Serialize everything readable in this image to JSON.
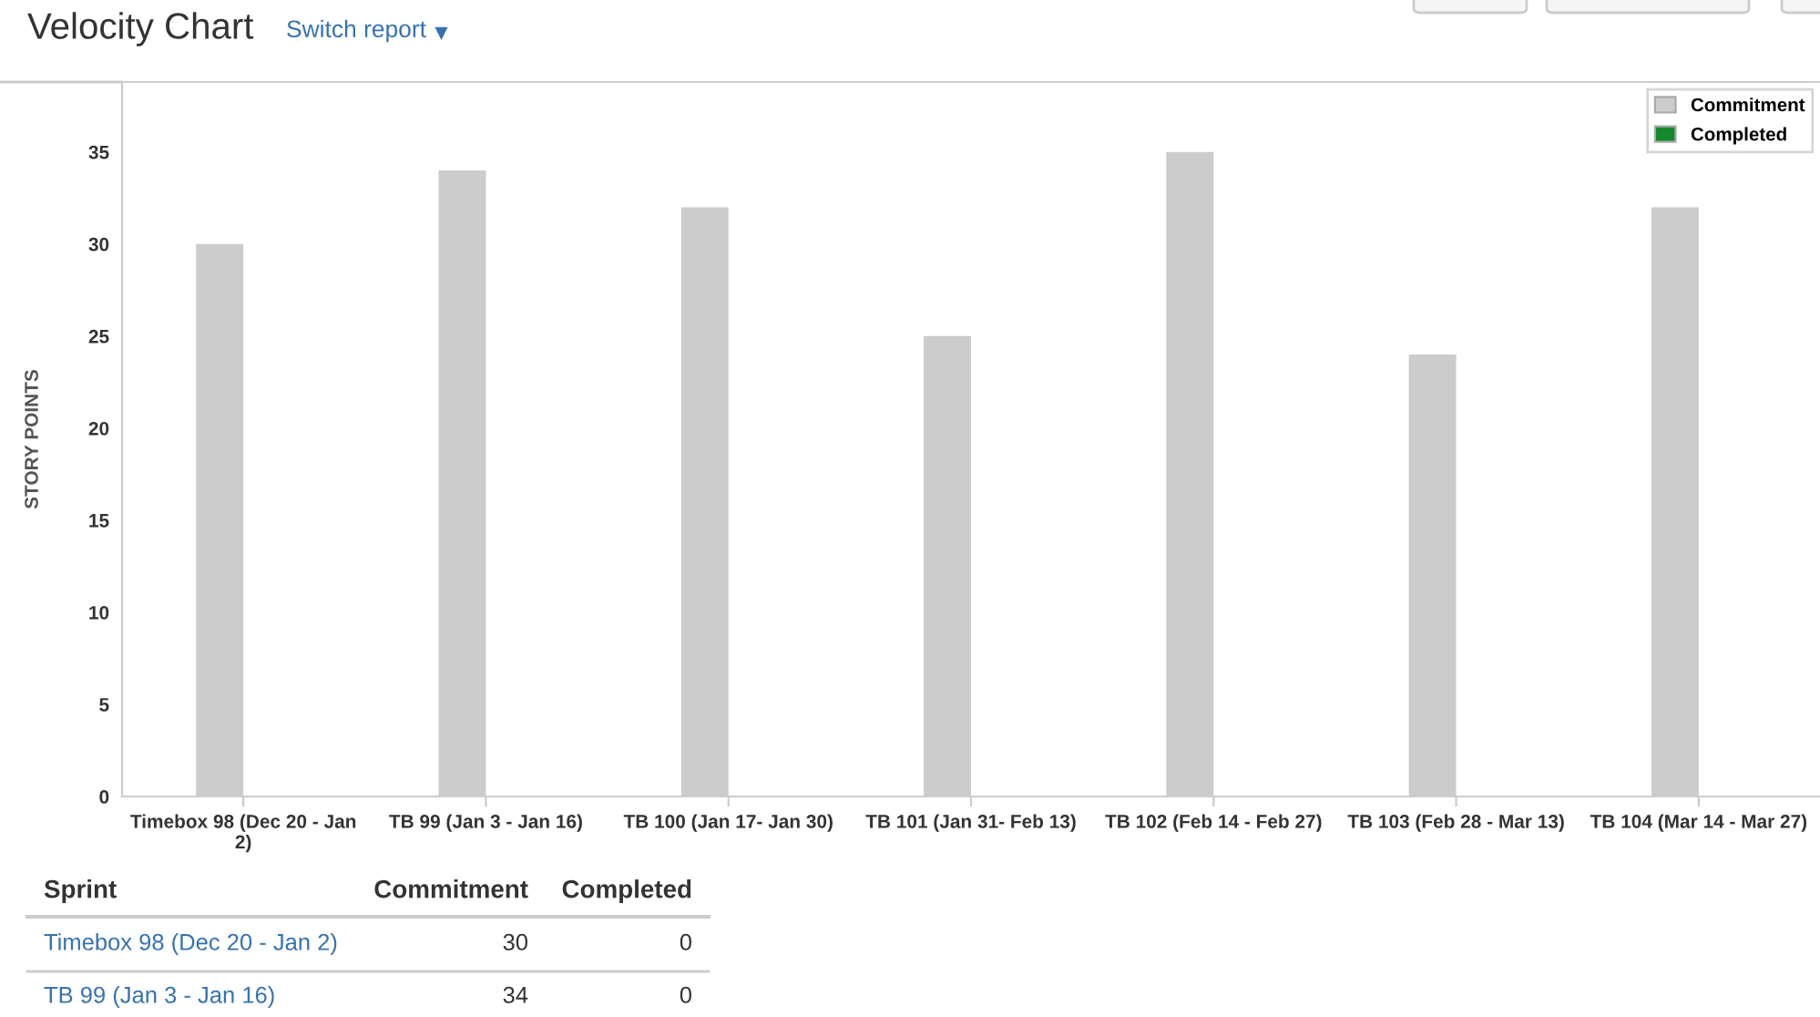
{
  "chart_data": {
    "type": "bar",
    "title": "Velocity Chart",
    "subtitle": "Switch report",
    "ylabel": "STORY POINTS",
    "categories": [
      "Timebox 98 (Dec 20 - Jan 2)",
      "TB 99 (Jan 3 - Jan 16)",
      "TB 100 (Jan 17- Jan 30)",
      "TB 101 (Jan 31- Feb 13)",
      "TB 102 (Feb 14 - Feb 27)",
      "TB 103 (Feb 28 - Mar 13)",
      "TB 104 (Mar 14 - Mar 27)"
    ],
    "series": [
      {
        "name": "Commitment",
        "color": "#cccccc",
        "values": [
          30,
          34,
          32,
          25,
          35,
          24,
          32
        ]
      },
      {
        "name": "Completed",
        "color": "#14892c",
        "values": [
          0,
          0,
          0,
          0,
          0,
          0,
          0
        ]
      }
    ],
    "ylim": [
      0,
      38.8
    ],
    "yticks": [
      0,
      5,
      10,
      15,
      20,
      25,
      30,
      35
    ],
    "legend": "top right",
    "annotations": [
      "Sprint",
      "Commitment",
      "Completed",
      "Timebox 98 (Dec 20 - Jan 2)",
      "30",
      "0",
      "TB 99 (Jan 3 - Jan 16)",
      "34",
      "0"
    ]
  }
}
